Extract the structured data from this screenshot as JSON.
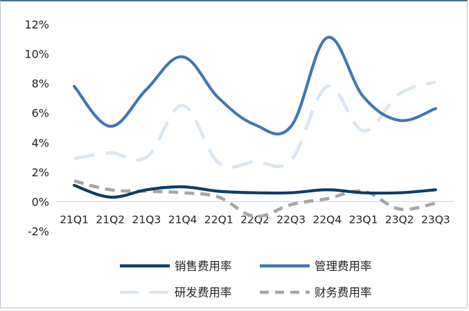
{
  "chart_data": {
    "type": "line",
    "title": "",
    "xlabel": "",
    "ylabel": "",
    "categories": [
      "21Q1",
      "21Q2",
      "21Q3",
      "21Q4",
      "22Q1",
      "22Q2",
      "22Q3",
      "22Q4",
      "23Q1",
      "23Q2",
      "23Q3"
    ],
    "ylim": [
      -2,
      12
    ],
    "yticks": [
      -2,
      0,
      2,
      4,
      6,
      8,
      10,
      12
    ],
    "ytick_labels": [
      "-2%",
      "0%",
      "2%",
      "4%",
      "6%",
      "8%",
      "10%",
      "12%"
    ],
    "grid": false,
    "legend_position": "bottom",
    "series": [
      {
        "name": "销售费用率",
        "color": "#0e3d63",
        "dash": "solid",
        "values": [
          1.1,
          0.3,
          0.8,
          1.0,
          0.7,
          0.6,
          0.6,
          0.8,
          0.6,
          0.6,
          0.8
        ]
      },
      {
        "name": "管理费用率",
        "color": "#3f77b3",
        "dash": "solid",
        "values": [
          7.8,
          5.1,
          7.6,
          9.8,
          7.0,
          5.2,
          5.1,
          11.1,
          7.1,
          5.5,
          6.3
        ]
      },
      {
        "name": "研发费用率",
        "color": "#d9e6f2",
        "dash": "long-dash",
        "values": [
          2.9,
          3.3,
          3.0,
          6.5,
          2.6,
          2.7,
          2.8,
          7.8,
          4.8,
          7.3,
          8.1
        ]
      },
      {
        "name": "财务费用率",
        "color": "#a6a6a6",
        "dash": "dash",
        "values": [
          1.4,
          0.8,
          0.7,
          0.6,
          0.3,
          -1.0,
          -0.2,
          0.2,
          0.7,
          -0.5,
          -0.1
        ]
      }
    ]
  }
}
